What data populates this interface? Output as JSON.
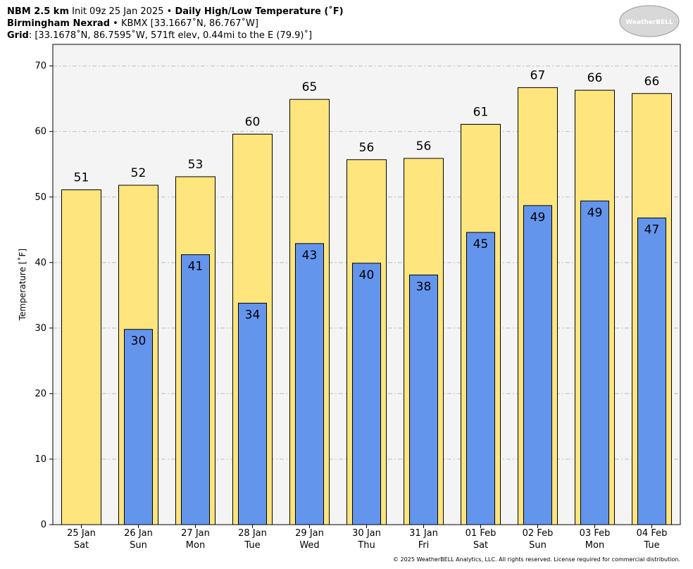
{
  "chart_data": {
    "type": "bar",
    "title": "Daily High/Low Temperature (˚F)",
    "header": {
      "model": "NBM 2.5 km",
      "init": "Init 09z 25 Jan 2025 •",
      "station": "Birmingham Nexrad",
      "station_info": "• KBMX [33.1667˚N, 86.767˚W]",
      "grid_label": "Grid",
      "grid_info": ": [33.1678˚N, 86.7595˚W, 571ft elev, 0.44mi to the E (79.9)˚]"
    },
    "logo": "WeatherBELL",
    "copyright": "© 2025 WeatherBELL Analytics, LLC. All rights reserved. License required for commercial distribution.",
    "y_label": "Temperature [˚F]",
    "categories": [
      "25 Jan",
      "26 Jan",
      "27 Jan",
      "28 Jan",
      "29 Jan",
      "30 Jan",
      "31 Jan",
      "01 Feb",
      "02 Feb",
      "03 Feb",
      "04 Feb"
    ],
    "weekdays": [
      "Sat",
      "Sun",
      "Mon",
      "Tue",
      "Wed",
      "Thu",
      "Fri",
      "Sat",
      "Sun",
      "Mon",
      "Tue"
    ],
    "series": [
      {
        "color": "#fee57d",
        "values": [
          51.1,
          51.8,
          53.1,
          59.6,
          64.9,
          55.7,
          55.9,
          61.1,
          66.7,
          66.3,
          65.8
        ],
        "value_labels": [
          "51",
          "52",
          "53",
          "60",
          "65",
          "56",
          "56",
          "61",
          "67",
          "66",
          "66"
        ]
      },
      {
        "color": "#6495ed",
        "values": [
          null,
          29.8,
          41.2,
          33.8,
          42.9,
          39.9,
          38.1,
          44.6,
          48.7,
          49.4,
          46.8
        ],
        "value_labels": [
          null,
          "30",
          "41",
          "34",
          "43",
          "40",
          "38",
          "45",
          "49",
          "49",
          "47"
        ]
      }
    ],
    "ylim": [
      0,
      73.3
    ],
    "yticks": [
      0,
      10,
      20,
      30,
      40,
      50,
      60,
      70
    ],
    "grid": true
  }
}
